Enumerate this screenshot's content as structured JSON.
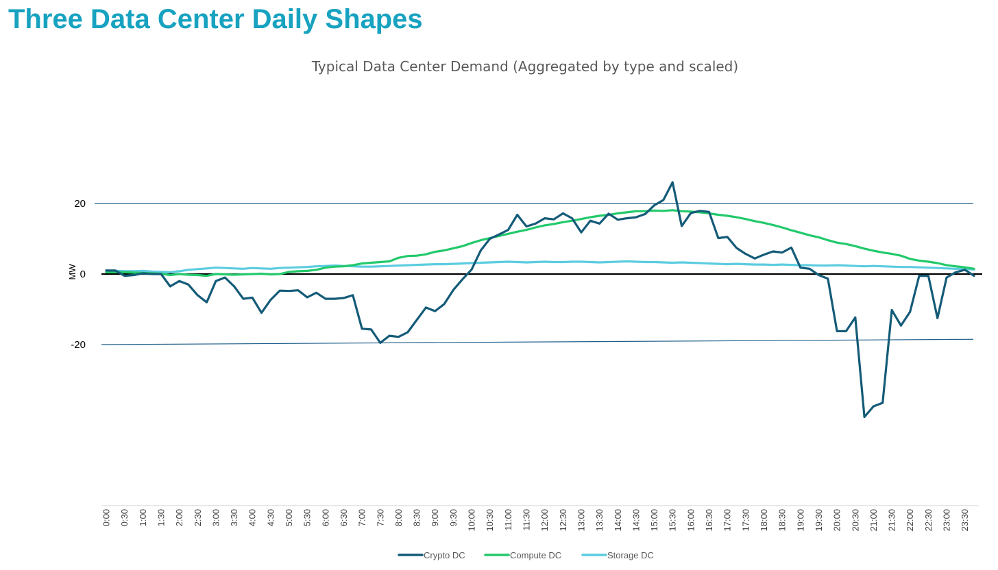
{
  "page": {
    "title": "Three Data Center Daily Shapes"
  },
  "chart_data": {
    "type": "line",
    "title": "Typical Data Center Demand (Aggregated by type and scaled)",
    "xlabel": "",
    "ylabel": "MW",
    "ylim": [
      -64,
      36
    ],
    "yticks": [
      20,
      0,
      -20
    ],
    "ytick_labels": [
      "20",
      "0",
      "-20"
    ],
    "grid": false,
    "legend_position": "bottom-center",
    "x": [
      "0:00",
      "0:15",
      "0:30",
      "0:45",
      "1:00",
      "1:15",
      "1:30",
      "1:45",
      "2:00",
      "2:15",
      "2:30",
      "2:45",
      "3:00",
      "3:15",
      "3:30",
      "3:45",
      "4:00",
      "4:15",
      "4:30",
      "4:45",
      "5:00",
      "5:15",
      "5:30",
      "5:45",
      "6:00",
      "6:15",
      "6:30",
      "6:45",
      "7:00",
      "7:15",
      "7:30",
      "7:45",
      "8:00",
      "8:15",
      "8:30",
      "8:45",
      "9:00",
      "9:15",
      "9:30",
      "9:45",
      "10:00",
      "10:15",
      "10:30",
      "10:45",
      "11:00",
      "11:15",
      "11:30",
      "11:45",
      "12:00",
      "12:15",
      "12:30",
      "12:45",
      "13:00",
      "13:15",
      "13:30",
      "13:45",
      "14:00",
      "14:15",
      "14:30",
      "14:45",
      "15:00",
      "15:15",
      "15:30",
      "15:45",
      "16:00",
      "16:15",
      "16:30",
      "16:45",
      "17:00",
      "17:15",
      "17:30",
      "17:45",
      "18:00",
      "18:15",
      "18:30",
      "18:45",
      "19:00",
      "19:15",
      "19:30",
      "19:45",
      "20:00",
      "20:15",
      "20:30",
      "20:45",
      "21:00",
      "21:15",
      "21:30",
      "21:45",
      "22:00",
      "22:15",
      "22:30",
      "22:45",
      "23:00",
      "23:15",
      "23:30",
      "23:45"
    ],
    "xtick_labels": [
      "0:00",
      "0:30",
      "1:00",
      "1:30",
      "2:00",
      "2:30",
      "3:00",
      "3:30",
      "4:00",
      "4:30",
      "5:00",
      "5:30",
      "6:00",
      "6:30",
      "7:00",
      "7:30",
      "8:00",
      "8:30",
      "9:00",
      "9:30",
      "10:00",
      "10:30",
      "11:00",
      "11:30",
      "12:00",
      "12:30",
      "13:00",
      "13:30",
      "14:00",
      "14:30",
      "15:00",
      "15:30",
      "16:00",
      "16:30",
      "17:00",
      "17:30",
      "18:00",
      "18:30",
      "19:00",
      "19:30",
      "20:00",
      "20:30",
      "21:00",
      "21:30",
      "22:00",
      "22:30",
      "23:00",
      "23:30"
    ],
    "reference_lines": [
      {
        "name": "upper",
        "color": "#1F5F8B",
        "y_start": 20,
        "y_end": 20
      },
      {
        "name": "lower",
        "color": "#1F5F8B",
        "y_start": -20,
        "y_end": -18.5
      },
      {
        "name": "zero",
        "color": "#000000",
        "y_start": 0,
        "y_end": 0
      }
    ],
    "series": [
      {
        "name": "Crypto DC",
        "color": "#145B78",
        "values": [
          1,
          1,
          -0.5,
          -0.3,
          0.2,
          0,
          0,
          -3.5,
          -2,
          -3,
          -6,
          -8,
          -2,
          -1,
          -3.5,
          -7,
          -6.7,
          -11,
          -7.3,
          -4.7,
          -4.8,
          -4.6,
          -6.6,
          -5.3,
          -7,
          -7,
          -6.8,
          -6,
          -15.5,
          -15.7,
          -19.5,
          -17.5,
          -17.8,
          -16.5,
          -13,
          -9.5,
          -10.5,
          -8.5,
          -4.5,
          -1.5,
          1.3,
          6.7,
          10,
          11.2,
          12.5,
          16.8,
          13.5,
          14.3,
          15.8,
          15.5,
          17.2,
          15.8,
          11.8,
          15.1,
          14.3,
          17.1,
          15.4,
          15.8,
          16.1,
          17,
          19.5,
          21,
          26,
          13.6,
          17.3,
          17.9,
          17.6,
          10.2,
          10.5,
          7.4,
          5.7,
          4.4,
          5.5,
          6.4,
          6.1,
          7.5,
          1.8,
          1.5,
          -0.3,
          -1.3,
          -16.2,
          -16.2,
          -12.3,
          -40.5,
          -37.5,
          -36.5,
          -10.2,
          -14.6,
          -10.7,
          -0.5,
          -0.5,
          -12.5,
          -1,
          0.5,
          1.2,
          -0.5
        ]
      },
      {
        "name": "Compute DC",
        "color": "#22C96B",
        "values": [
          0.5,
          0.5,
          0.5,
          0.4,
          0.3,
          0.2,
          0.1,
          -0.3,
          0,
          -0.2,
          -0.3,
          -0.5,
          0,
          -0.1,
          -0.2,
          -0.1,
          0,
          0.1,
          -0.1,
          0,
          0.6,
          0.8,
          0.9,
          1.2,
          1.8,
          2.1,
          2.2,
          2.5,
          3,
          3.2,
          3.4,
          3.6,
          4.6,
          5.1,
          5.2,
          5.6,
          6.3,
          6.7,
          7.3,
          7.9,
          8.8,
          9.6,
          10.2,
          10.8,
          11.4,
          12,
          12.5,
          13.2,
          13.8,
          14.2,
          14.7,
          15.1,
          15.6,
          16.1,
          16.5,
          16.8,
          17.2,
          17.5,
          17.8,
          17.8,
          18,
          17.9,
          18.1,
          17.8,
          17.7,
          17.5,
          17.2,
          16.8,
          16.5,
          16.1,
          15.6,
          15,
          14.5,
          13.9,
          13.2,
          12.4,
          11.7,
          11,
          10.4,
          9.6,
          8.9,
          8.5,
          7.9,
          7.2,
          6.6,
          6.1,
          5.7,
          5.2,
          4.3,
          3.8,
          3.5,
          3.1,
          2.5,
          2.2,
          1.9,
          1.5
        ]
      },
      {
        "name": "Storage DC",
        "color": "#5CCCE0",
        "values": [
          1,
          0.9,
          0.8,
          0.8,
          0.9,
          0.7,
          0.6,
          0.5,
          0.8,
          1.2,
          1.4,
          1.6,
          1.8,
          1.7,
          1.6,
          1.5,
          1.7,
          1.6,
          1.5,
          1.7,
          1.8,
          1.9,
          2,
          2.2,
          2.3,
          2.4,
          2.3,
          2.2,
          2.1,
          2.1,
          2.2,
          2.3,
          2.4,
          2.5,
          2.6,
          2.7,
          2.8,
          2.8,
          2.9,
          3,
          3.1,
          3.2,
          3.3,
          3.4,
          3.5,
          3.4,
          3.3,
          3.4,
          3.5,
          3.4,
          3.4,
          3.5,
          3.5,
          3.4,
          3.3,
          3.4,
          3.5,
          3.6,
          3.5,
          3.4,
          3.4,
          3.3,
          3.2,
          3.3,
          3.2,
          3.1,
          3,
          2.9,
          2.8,
          2.9,
          2.8,
          2.7,
          2.7,
          2.6,
          2.7,
          2.6,
          2.5,
          2.5,
          2.4,
          2.4,
          2.5,
          2.4,
          2.3,
          2.2,
          2.3,
          2.2,
          2.1,
          2,
          2,
          1.9,
          1.8,
          1.7,
          1.6,
          1.5,
          1.4,
          1.3
        ]
      }
    ]
  }
}
